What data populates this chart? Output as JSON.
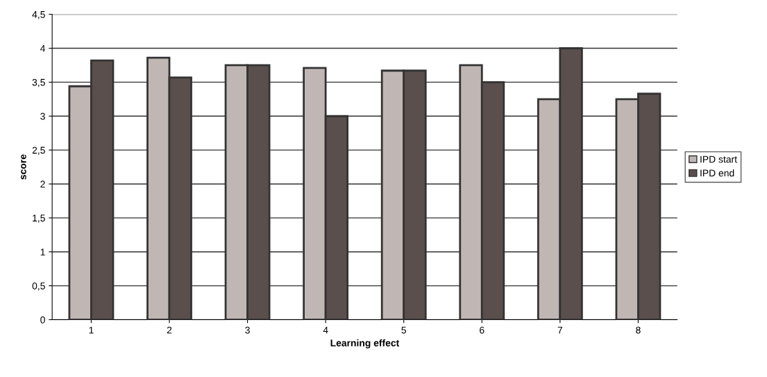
{
  "chart_data": {
    "type": "bar",
    "xlabel": "Learning effect",
    "ylabel": "score",
    "categories": [
      "1",
      "2",
      "3",
      "4",
      "5",
      "6",
      "7",
      "8"
    ],
    "series": [
      {
        "name": "IPD start",
        "color": "#c0b6b4",
        "values": [
          3.44,
          3.86,
          3.75,
          3.71,
          3.67,
          3.75,
          3.25,
          3.25
        ]
      },
      {
        "name": "IPD end",
        "color": "#5a4f4c",
        "values": [
          3.82,
          3.57,
          3.75,
          3.0,
          3.67,
          3.5,
          4.0,
          3.33
        ]
      }
    ],
    "ylim": [
      0,
      4.5
    ],
    "yticks": [
      {
        "value": 0,
        "label": "0"
      },
      {
        "value": 0.5,
        "label": "0,5"
      },
      {
        "value": 1,
        "label": "1"
      },
      {
        "value": 1.5,
        "label": "1,5"
      },
      {
        "value": 2,
        "label": "2"
      },
      {
        "value": 2.5,
        "label": "2,5"
      },
      {
        "value": 3,
        "label": "3"
      },
      {
        "value": 3.5,
        "label": "3,5"
      },
      {
        "value": 4,
        "label": "4"
      },
      {
        "value": 4.5,
        "label": "4,5"
      }
    ],
    "grid": "y",
    "legend": "right"
  }
}
